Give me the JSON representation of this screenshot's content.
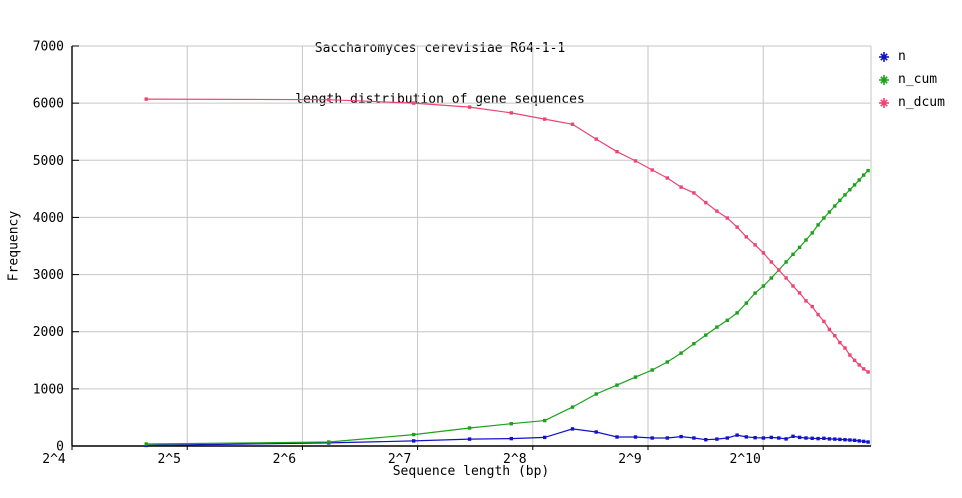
{
  "title": {
    "line1": "Saccharomyces cerevisiae R64-1-1",
    "line2": "length distribution of gene sequences"
  },
  "axes": {
    "x_label": "Sequence length (bp)",
    "y_label": "Frequency"
  },
  "legend": {
    "items": [
      {
        "label": "n",
        "color": "#1212cc"
      },
      {
        "label": "n_cum",
        "color": "#1aa21a"
      },
      {
        "label": "n_dcum",
        "color": "#ef4371"
      }
    ]
  },
  "colors": {
    "grid": "#c6c6c6",
    "axis": "#000000",
    "background": "#ffffff"
  },
  "chart_data": {
    "type": "line",
    "title": "Saccharomyces cerevisiae R64-1-1",
    "subtitle": "length distribution of gene sequences",
    "xlabel": "Sequence length (bp)",
    "ylabel": "Frequency",
    "x_scale": "log2",
    "grid": true,
    "legend_position": "top-right-outside",
    "ylim": [
      0,
      7000
    ],
    "xlim_log2": [
      4,
      10.94
    ],
    "y_ticks": [
      0,
      1000,
      2000,
      3000,
      4000,
      5000,
      6000,
      7000
    ],
    "y_tick_labels": [
      "0",
      "1000",
      "2000",
      "3000",
      "4000",
      "5000",
      "6000",
      "7000"
    ],
    "x_ticks": [
      16,
      32,
      64,
      128,
      256,
      512,
      1024
    ],
    "x_tick_labels": [
      "2^4",
      "2^5",
      "2^6",
      "2^7",
      "2^8",
      "2^9",
      "2^10"
    ],
    "x": [
      25,
      75,
      125,
      175,
      225,
      275,
      325,
      375,
      425,
      475,
      525,
      575,
      625,
      675,
      725,
      775,
      825,
      875,
      925,
      975,
      1025,
      1075,
      1125,
      1175,
      1225,
      1275,
      1325,
      1375,
      1425,
      1475,
      1525,
      1575,
      1625,
      1675,
      1725,
      1775,
      1825,
      1875,
      1925
    ],
    "series": [
      {
        "name": "n",
        "color": "#1212cc",
        "values": [
          10,
          55,
          90,
          120,
          130,
          150,
          300,
          245,
          157,
          157,
          140,
          140,
          165,
          140,
          110,
          120,
          140,
          190,
          160,
          145,
          140,
          150,
          140,
          125,
          170,
          150,
          140,
          135,
          130,
          135,
          125,
          120,
          115,
          110,
          105,
          100,
          90,
          80,
          70
        ]
      },
      {
        "name": "n_cum",
        "color": "#1aa21a",
        "values": [
          35,
          70,
          200,
          315,
          390,
          445,
          680,
          910,
          1065,
          1205,
          1330,
          1470,
          1625,
          1790,
          1940,
          2080,
          2200,
          2330,
          2500,
          2675,
          2800,
          2940,
          3080,
          3220,
          3355,
          3475,
          3605,
          3730,
          3870,
          3990,
          4095,
          4200,
          4300,
          4395,
          4485,
          4570,
          4655,
          4740,
          4820
        ]
      },
      {
        "name": "n_dcum",
        "color": "#ef4371",
        "values": [
          6070,
          6060,
          6000,
          5930,
          5830,
          5720,
          5630,
          5370,
          5150,
          4990,
          4830,
          4690,
          4530,
          4430,
          4260,
          4110,
          3990,
          3830,
          3660,
          3520,
          3380,
          3220,
          3080,
          2940,
          2800,
          2680,
          2540,
          2440,
          2300,
          2180,
          2040,
          1930,
          1810,
          1715,
          1590,
          1500,
          1420,
          1350,
          1295
        ]
      }
    ]
  }
}
